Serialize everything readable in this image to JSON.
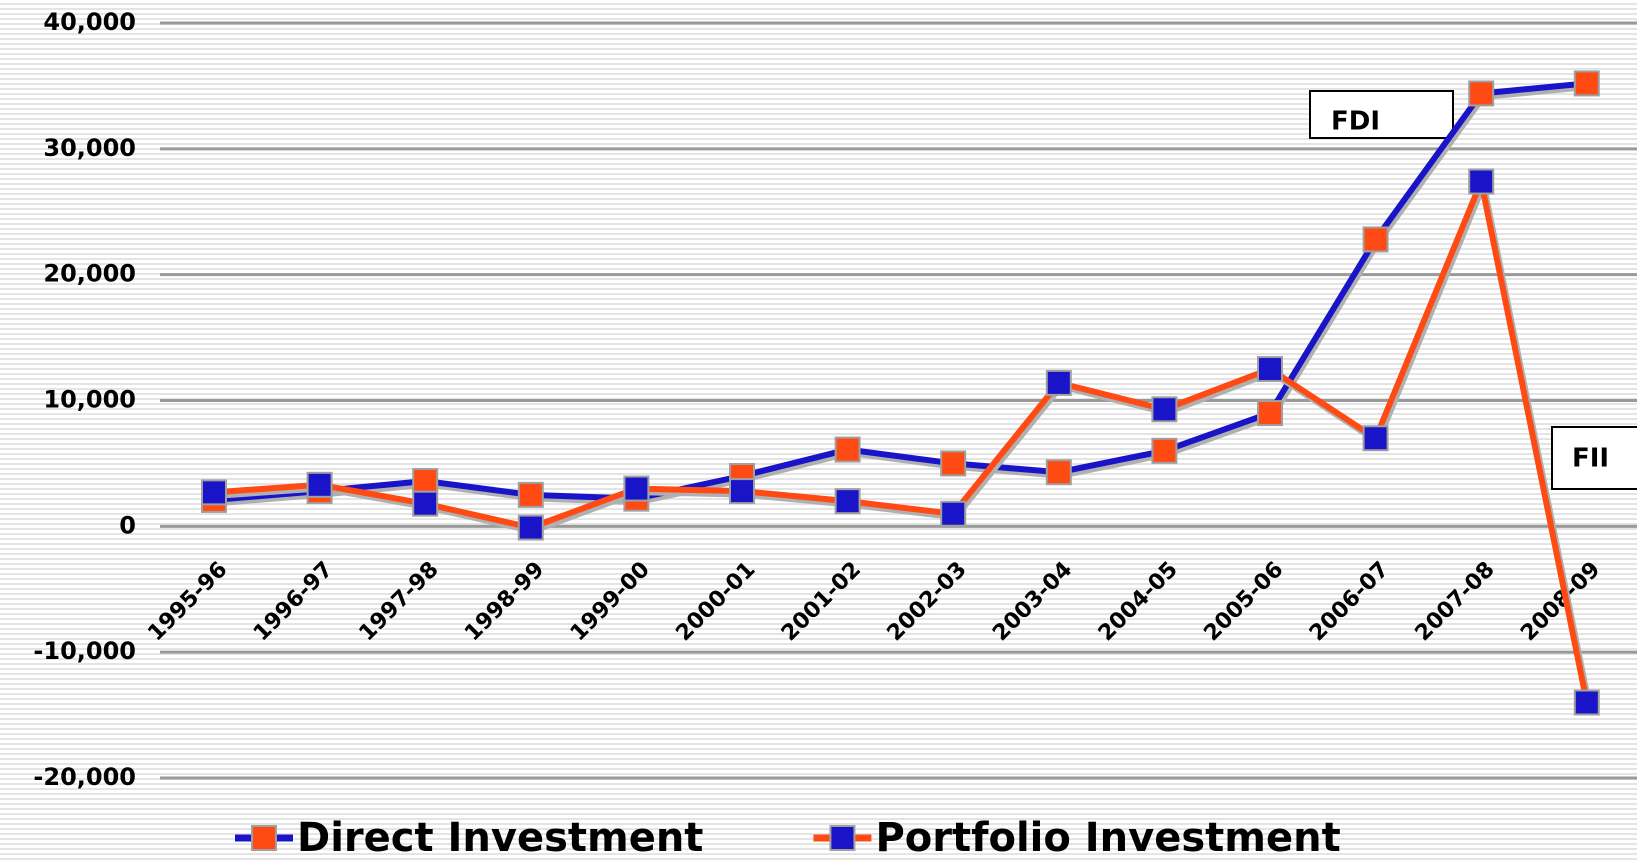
{
  "chart_data": {
    "type": "line",
    "categories": [
      "1995-96",
      "1996-97",
      "1997-98",
      "1998-99",
      "1999-00",
      "2000-01",
      "2001-02",
      "2002-03",
      "2003-04",
      "2004-05",
      "2005-06",
      "2006-07",
      "2007-08",
      "2008-09"
    ],
    "series": [
      {
        "name": "Direct Investment",
        "color": "#1a14c8",
        "marker_color": "#ff4a14",
        "values": [
          2100,
          2800,
          3600,
          2500,
          2200,
          4000,
          6100,
          5000,
          4300,
          6000,
          9000,
          22800,
          34400,
          35200
        ]
      },
      {
        "name": "Portfolio Investment",
        "color": "#ff4a14",
        "marker_color": "#1a14c8",
        "values": [
          2700,
          3300,
          1800,
          -100,
          3000,
          2800,
          2000,
          1000,
          11400,
          9300,
          12500,
          7000,
          27400,
          -14000
        ]
      }
    ],
    "ylim": [
      -20000,
      40000
    ],
    "yticks": [
      {
        "value": -20000,
        "label": "-20,000"
      },
      {
        "value": -10000,
        "label": "-10,000"
      },
      0,
      {
        "value": 10000,
        "label": "10,000"
      },
      {
        "value": 20000,
        "label": "20,000"
      },
      {
        "value": 30000,
        "label": "30,000"
      },
      {
        "value": 40000,
        "label": "40,000"
      }
    ],
    "grid": true,
    "annotations": [
      "FDI",
      "FII"
    ],
    "legend": "bottom"
  }
}
